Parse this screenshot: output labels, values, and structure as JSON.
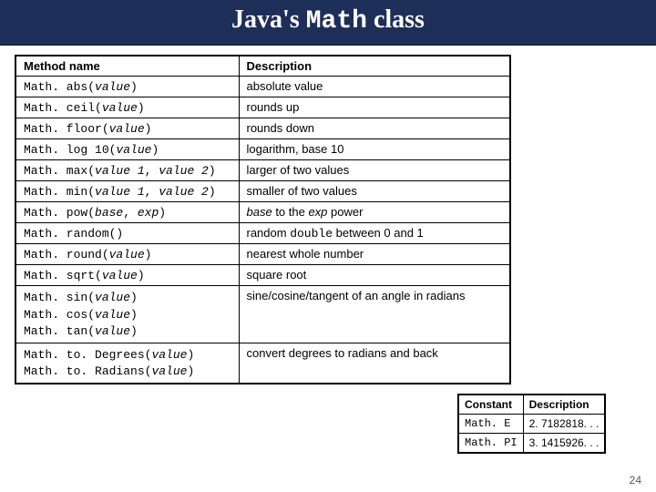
{
  "title": {
    "prefix": "Java's ",
    "mono": "Math",
    "suffix": " class"
  },
  "main_table": {
    "headers": [
      "Method name",
      "Description"
    ],
    "rows": [
      {
        "method_parts": [
          "Math. abs(",
          "value",
          ")"
        ],
        "desc_plain": "absolute value"
      },
      {
        "method_parts": [
          "Math. ceil(",
          "value",
          ")"
        ],
        "desc_plain": "rounds up"
      },
      {
        "method_parts": [
          "Math. floor(",
          "value",
          ")"
        ],
        "desc_plain": "rounds down"
      },
      {
        "method_parts": [
          "Math. log 10(",
          "value",
          ")"
        ],
        "desc_plain": "logarithm, base 10"
      },
      {
        "method_parts": [
          "Math. max(",
          "value 1",
          ", ",
          "value 2",
          ")"
        ],
        "desc_plain": "larger of two values"
      },
      {
        "method_parts": [
          "Math. min(",
          "value 1",
          ", ",
          "value 2",
          ")"
        ],
        "desc_plain": "smaller of two values"
      },
      {
        "method_parts": [
          "Math. pow(",
          "base",
          ", ",
          "exp",
          ")"
        ],
        "desc_rich": [
          {
            "t": "base",
            "ital": true
          },
          {
            "t": " to the ",
            "ital": false
          },
          {
            "t": "exp",
            "ital": true
          },
          {
            "t": " power",
            "ital": false
          }
        ]
      },
      {
        "method_parts": [
          "Math. random()"
        ],
        "desc_rich": [
          {
            "t": "random ",
            "ital": false
          },
          {
            "t": "double",
            "mono": true
          },
          {
            "t": " between 0 and 1",
            "ital": false
          }
        ]
      },
      {
        "method_parts": [
          "Math. round(",
          "value",
          ")"
        ],
        "desc_plain": "nearest whole number"
      },
      {
        "method_parts": [
          "Math. sqrt(",
          "value",
          ")"
        ],
        "desc_plain": "square root"
      },
      {
        "method_lines": [
          [
            "Math. sin(",
            "value",
            ")"
          ],
          [
            "Math. cos(",
            "value",
            ")"
          ],
          [
            "Math. tan(",
            "value",
            ")"
          ]
        ],
        "desc_plain": "sine/cosine/tangent of an angle in radians"
      },
      {
        "method_lines": [
          [
            "Math. to. Degrees(",
            "value",
            ")"
          ],
          [
            "Math. to. Radians(",
            "value",
            ")"
          ]
        ],
        "desc_plain": "convert degrees to radians and back"
      }
    ]
  },
  "const_table": {
    "headers": [
      "Constant",
      "Description"
    ],
    "rows": [
      {
        "name": "Math. E",
        "val": "2. 7182818. . ."
      },
      {
        "name": "Math. PI",
        "val": "3. 1415926. . ."
      }
    ]
  },
  "page_number": "24",
  "colors": {
    "title_bg": "#1d2f59",
    "title_fg": "#ffffff",
    "border": "#000000",
    "page_bg": "#ffffff"
  }
}
